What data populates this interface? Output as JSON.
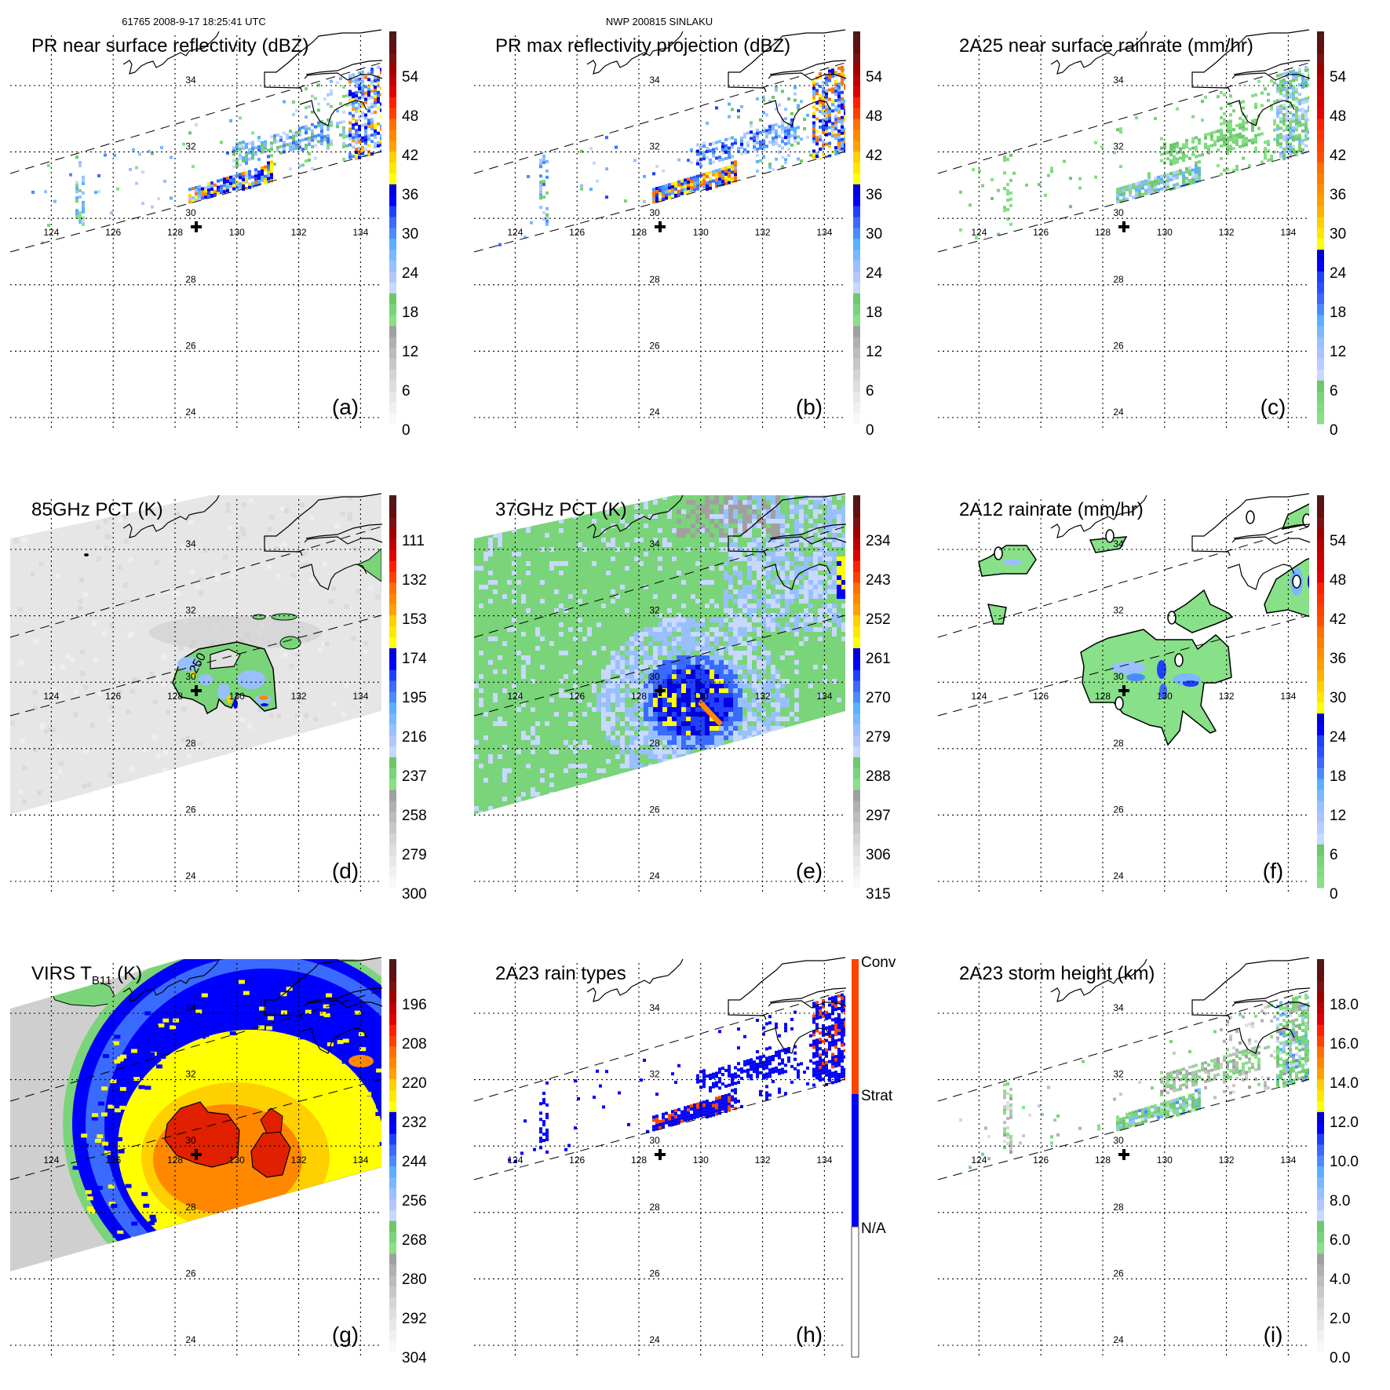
{
  "header": {
    "orbit_time": "61765 2008-9-17 18:25:41 UTC",
    "storm": "NWP 200815 SINLAKU"
  },
  "lat_labels": [
    "34",
    "32",
    "30",
    "28",
    "26",
    "24"
  ],
  "lon_labels": [
    "124",
    "126",
    "128",
    "130",
    "132",
    "134"
  ],
  "contour_label": "250",
  "palettes": {
    "dbz": [
      "#f8f8f8",
      "#f0f0f0",
      "#e8e8e8",
      "#dedede",
      "#d4d4d4",
      "#c8c8c8",
      "#bcbcbc",
      "#b0b0b0",
      "#a0a0a0",
      "#88e088",
      "#7ad47a",
      "#6cc86c",
      "#c8d8ff",
      "#b0c8ff",
      "#98c0ff",
      "#7ab8ff",
      "#58b0ff",
      "#4a8cff",
      "#3a6aff",
      "#2040ff",
      "#0000ff",
      "#0000d8",
      "#ffff00",
      "#ffe800",
      "#ffd000",
      "#ffa000",
      "#ff8800",
      "#ff7000",
      "#ff4000",
      "#ff2000",
      "#e00000",
      "#c00000",
      "#a00000",
      "#801010",
      "#601010",
      "#501818"
    ],
    "rain": [
      "#88e088",
      "#80dc80",
      "#7ad47a",
      "#6cc86c",
      "#c8d8ff",
      "#b8ccff",
      "#a8c4ff",
      "#98c0ff",
      "#7ab8ff",
      "#58b0ff",
      "#4a8cff",
      "#3a6aff",
      "#2a50ff",
      "#2040ff",
      "#0000ff",
      "#0000d8",
      "#ffff00",
      "#ffe800",
      "#ffd000",
      "#ffb000",
      "#ffa000",
      "#ff9000",
      "#ff8000",
      "#ff7000",
      "#ff5000",
      "#ff4000",
      "#ff3000",
      "#ff2000",
      "#e80000",
      "#d80000",
      "#c80000",
      "#b80000",
      "#a00000",
      "#801010",
      "#601010",
      "#501818"
    ],
    "types": {
      "conv": "#ff4400",
      "strat": "#0000ff",
      "na": "#ffffff"
    }
  },
  "panels": [
    {
      "id": "a",
      "title": "PR near surface reflectivity (dBZ)",
      "label": "(a)",
      "palette": "dbz",
      "ticks": [
        "0",
        "6",
        "12",
        "18",
        "24",
        "30",
        "36",
        "42",
        "48",
        "54"
      ]
    },
    {
      "id": "b",
      "title": "PR max reflectivity projection (dBZ)",
      "label": "(b)",
      "palette": "dbz",
      "ticks": [
        "0",
        "6",
        "12",
        "18",
        "24",
        "30",
        "36",
        "42",
        "48",
        "54"
      ]
    },
    {
      "id": "c",
      "title": "2A25 near surface rainrate (mm/hr)",
      "label": "(c)",
      "palette": "rain",
      "ticks": [
        "0",
        "6",
        "12",
        "18",
        "24",
        "30",
        "36",
        "42",
        "48",
        "54"
      ]
    },
    {
      "id": "d",
      "title": "85GHz PCT (K)",
      "label": "(d)",
      "palette": "dbz",
      "ticks": [
        "300",
        "279",
        "258",
        "237",
        "216",
        "195",
        "174",
        "153",
        "132",
        "111"
      ]
    },
    {
      "id": "e",
      "title": "37GHz PCT (K)",
      "label": "(e)",
      "palette": "dbz",
      "ticks": [
        "315",
        "306",
        "297",
        "288",
        "279",
        "270",
        "261",
        "252",
        "243",
        "234"
      ]
    },
    {
      "id": "f",
      "title": "2A12 rainrate (mm/hr)",
      "label": "(f)",
      "palette": "rain",
      "ticks": [
        "0",
        "6",
        "12",
        "18",
        "24",
        "30",
        "36",
        "42",
        "48",
        "54"
      ]
    },
    {
      "id": "g",
      "title": "VIRS T",
      "title_sub": "B11",
      "title_suffix": " (K)",
      "label": "(g)",
      "palette": "dbz",
      "ticks": [
        "304",
        "292",
        "280",
        "268",
        "256",
        "244",
        "232",
        "220",
        "208",
        "196"
      ]
    },
    {
      "id": "h",
      "title": "2A23 rain types",
      "label": "(h)",
      "palette": "types",
      "type_labels": [
        "Conv",
        "Strat",
        "N/A"
      ]
    },
    {
      "id": "i",
      "title": "2A23 storm height (km)",
      "label": "(i)",
      "palette": "dbz",
      "ticks": [
        "0.0",
        "2.0",
        "4.0",
        "6.0",
        "8.0",
        "10.0",
        "12.0",
        "14.0",
        "16.0",
        "18.0"
      ]
    }
  ]
}
